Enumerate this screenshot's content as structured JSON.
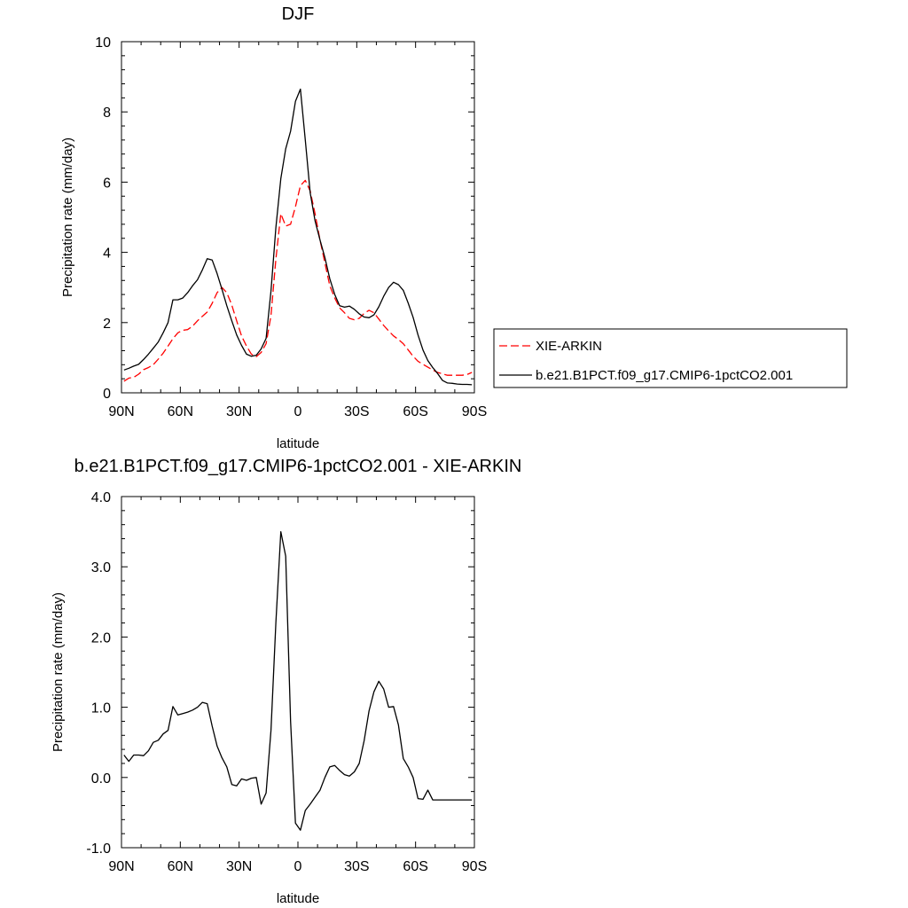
{
  "chart_data": [
    {
      "type": "line",
      "title": "DJF",
      "xlabel": "latitude",
      "ylabel": "Precipitation rate (mm/day)",
      "xlim": [
        90,
        -90
      ],
      "ylim": [
        0,
        10
      ],
      "x_ticks": [
        90,
        60,
        30,
        0,
        -30,
        -60,
        -90
      ],
      "x_tick_labels": [
        "90N",
        "60N",
        "30N",
        "0",
        "30S",
        "60S",
        "90S"
      ],
      "y_ticks": [
        0,
        2,
        4,
        6,
        8,
        10
      ],
      "y_tick_labels": [
        "0",
        "2",
        "4",
        "6",
        "8",
        "10"
      ],
      "grid": false,
      "legend": {
        "placement": "right",
        "entries": [
          "XIE-ARKIN",
          "b.e21.B1PCT.f09_g17.CMIP6-1pctCO2.001"
        ]
      },
      "series": [
        {
          "name": "XIE-ARKIN",
          "color": "#ff0000",
          "style": "dashed",
          "x": [
            88.75,
            86.25,
            83.75,
            81.25,
            78.75,
            76.25,
            73.75,
            71.25,
            68.75,
            66.25,
            63.75,
            61.25,
            58.75,
            56.25,
            53.75,
            51.25,
            48.75,
            46.25,
            43.75,
            41.25,
            38.75,
            36.25,
            33.75,
            31.25,
            28.75,
            26.25,
            23.75,
            21.25,
            18.75,
            16.25,
            13.75,
            11.25,
            8.75,
            6.25,
            3.75,
            1.25,
            -1.25,
            -3.75,
            -6.25,
            -8.75,
            -11.25,
            -13.75,
            -16.25,
            -18.75,
            -21.25,
            -23.75,
            -26.25,
            -28.75,
            -31.25,
            -33.75,
            -36.25,
            -38.75,
            -41.25,
            -43.75,
            -46.25,
            -48.75,
            -51.25,
            -53.75,
            -56.25,
            -58.75,
            -61.25,
            -63.75,
            -66.25,
            -68.75,
            -71.25,
            -73.75,
            -76.25,
            -78.75,
            -81.25,
            -83.75,
            -86.25,
            -88.75
          ],
          "y": [
            0.33,
            0.42,
            0.44,
            0.53,
            0.66,
            0.72,
            0.8,
            0.96,
            1.13,
            1.33,
            1.54,
            1.71,
            1.78,
            1.8,
            1.9,
            2.05,
            2.18,
            2.3,
            2.55,
            2.85,
            3.0,
            2.85,
            2.5,
            2.05,
            1.62,
            1.33,
            1.1,
            1.03,
            1.15,
            1.4,
            2.2,
            3.8,
            5.1,
            4.75,
            4.8,
            5.3,
            5.9,
            6.05,
            5.75,
            5.1,
            4.35,
            3.7,
            3.05,
            2.7,
            2.42,
            2.28,
            2.12,
            2.08,
            2.12,
            2.26,
            2.35,
            2.28,
            2.1,
            1.92,
            1.76,
            1.62,
            1.52,
            1.4,
            1.22,
            1.04,
            0.9,
            0.81,
            0.73,
            0.65,
            0.58,
            0.54,
            0.5,
            0.5,
            0.5,
            0.5,
            0.52,
            0.58
          ]
        },
        {
          "name": "b.e21.B1PCT.f09_g17.CMIP6-1pctCO2.001",
          "color": "#000000",
          "style": "solid",
          "x": [
            88.75,
            86.25,
            83.75,
            81.25,
            78.75,
            76.25,
            73.75,
            71.25,
            68.75,
            66.25,
            63.75,
            61.25,
            58.75,
            56.25,
            53.75,
            51.25,
            48.75,
            46.25,
            43.75,
            41.25,
            38.75,
            36.25,
            33.75,
            31.25,
            28.75,
            26.25,
            23.75,
            21.25,
            18.75,
            16.25,
            13.75,
            11.25,
            8.75,
            6.25,
            3.75,
            1.25,
            -1.25,
            -3.75,
            -6.25,
            -8.75,
            -11.25,
            -13.75,
            -16.25,
            -18.75,
            -21.25,
            -23.75,
            -26.25,
            -28.75,
            -31.25,
            -33.75,
            -36.25,
            -38.75,
            -41.25,
            -43.75,
            -46.25,
            -48.75,
            -51.25,
            -53.75,
            -56.25,
            -58.75,
            -61.25,
            -63.75,
            -66.25,
            -68.75,
            -71.25,
            -73.75,
            -76.25,
            -78.75,
            -81.25,
            -83.75,
            -86.25,
            -88.75
          ],
          "y": [
            0.65,
            0.7,
            0.76,
            0.81,
            0.95,
            1.1,
            1.27,
            1.45,
            1.71,
            2.0,
            2.65,
            2.65,
            2.7,
            2.85,
            3.05,
            3.22,
            3.5,
            3.82,
            3.78,
            3.4,
            2.95,
            2.48,
            2.05,
            1.65,
            1.35,
            1.1,
            1.04,
            1.07,
            1.25,
            1.55,
            2.9,
            4.7,
            6.1,
            6.95,
            7.45,
            8.3,
            8.65,
            7.2,
            5.7,
            4.9,
            4.35,
            3.85,
            3.25,
            2.8,
            2.48,
            2.44,
            2.47,
            2.38,
            2.25,
            2.16,
            2.14,
            2.22,
            2.45,
            2.75,
            3.0,
            3.15,
            3.08,
            2.92,
            2.55,
            2.15,
            1.65,
            1.22,
            0.92,
            0.72,
            0.55,
            0.35,
            0.28,
            0.27,
            0.25,
            0.24,
            0.24,
            0.23
          ]
        }
      ]
    },
    {
      "type": "line",
      "title": "b.e21.B1PCT.f09_g17.CMIP6-1pctCO2.001 - XIE-ARKIN",
      "xlabel": "latitude",
      "ylabel": "Precipitation rate (mm/day)",
      "xlim": [
        90,
        -90
      ],
      "ylim": [
        -1,
        4
      ],
      "x_ticks": [
        90,
        60,
        30,
        0,
        -30,
        -60,
        -90
      ],
      "x_tick_labels": [
        "90N",
        "60N",
        "30N",
        "0",
        "30S",
        "60S",
        "90S"
      ],
      "y_ticks": [
        -1,
        0,
        1,
        2,
        3,
        4
      ],
      "y_tick_labels": [
        "-1.0",
        "0.0",
        "1.0",
        "2.0",
        "3.0",
        "4.0"
      ],
      "grid": false,
      "series": [
        {
          "color": "#000000",
          "style": "solid",
          "x": [
            88.75,
            86.25,
            83.75,
            81.25,
            78.75,
            76.25,
            73.75,
            71.25,
            68.75,
            66.25,
            63.75,
            61.25,
            58.75,
            56.25,
            53.75,
            51.25,
            48.75,
            46.25,
            43.75,
            41.25,
            38.75,
            36.25,
            33.75,
            31.25,
            28.75,
            26.25,
            23.75,
            21.25,
            18.75,
            16.25,
            13.75,
            11.25,
            8.75,
            6.25,
            3.75,
            1.25,
            -1.25,
            -3.75,
            -6.25,
            -8.75,
            -11.25,
            -13.75,
            -16.25,
            -18.75,
            -21.25,
            -23.75,
            -26.25,
            -28.75,
            -31.25,
            -33.75,
            -36.25,
            -38.75,
            -41.25,
            -43.75,
            -46.25,
            -48.75,
            -51.25,
            -53.75,
            -56.25,
            -58.75,
            -61.25,
            -63.75,
            -66.25,
            -68.75,
            -71.25,
            -73.75,
            -76.25,
            -78.75,
            -81.25,
            -83.75,
            -86.25,
            -88.75
          ],
          "y": [
            0.32,
            0.23,
            0.32,
            0.32,
            0.31,
            0.38,
            0.5,
            0.53,
            0.62,
            0.67,
            1.01,
            0.89,
            0.91,
            0.93,
            0.96,
            1.0,
            1.07,
            1.05,
            0.73,
            0.45,
            0.28,
            0.15,
            -0.1,
            -0.12,
            -0.02,
            -0.04,
            -0.01,
            0.0,
            -0.38,
            -0.22,
            0.67,
            2.2,
            3.5,
            3.15,
            0.8,
            -0.65,
            -0.75,
            -0.47,
            -0.38,
            -0.28,
            -0.18,
            0.0,
            0.15,
            0.17,
            0.1,
            0.04,
            0.02,
            0.08,
            0.2,
            0.52,
            0.95,
            1.22,
            1.37,
            1.26,
            1.0,
            1.01,
            0.75,
            0.27,
            0.15,
            0.0,
            -0.3,
            -0.31,
            -0.18,
            -0.32,
            -0.32,
            -0.32,
            -0.32,
            -0.32,
            -0.32,
            -0.32,
            -0.32,
            -0.32
          ]
        }
      ]
    }
  ]
}
